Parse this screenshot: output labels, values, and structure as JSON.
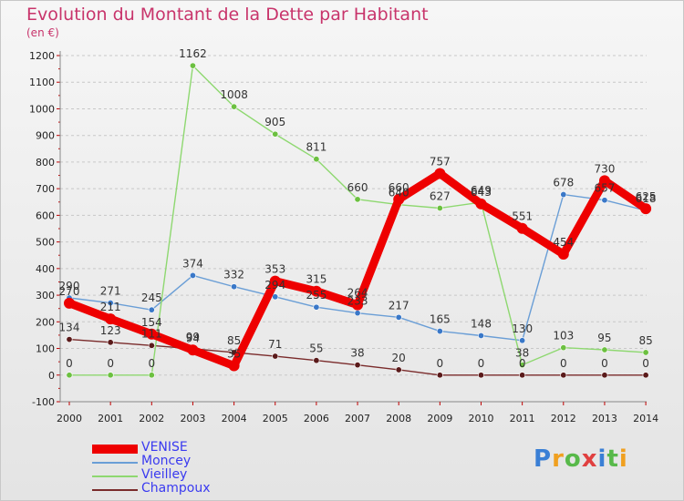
{
  "title": "Evolution du Montant de la Dette par Habitant",
  "subtitle": "(en €)",
  "logo": {
    "text": "Proxiti",
    "letter_colors": [
      "#3a7fd5",
      "#f0a020",
      "#58b94a",
      "#e04040",
      "#3a7fd5",
      "#58b94a",
      "#f0a020"
    ]
  },
  "chart_data": {
    "type": "line",
    "x": [
      "2000",
      "2001",
      "2002",
      "2003",
      "2004",
      "2005",
      "2006",
      "2007",
      "2008",
      "2009",
      "2010",
      "2011",
      "2012",
      "2013",
      "2014"
    ],
    "ylim": [
      -100,
      1200
    ],
    "yticks": [
      -100,
      0,
      100,
      200,
      300,
      400,
      500,
      600,
      700,
      800,
      900,
      1000,
      1100,
      1200
    ],
    "grid": "horizontal dashed",
    "legend_position": "bottom-left",
    "series": [
      {
        "name": "Champoux",
        "color": "#7a2b2b",
        "marker": "#5a1a1a",
        "values": [
          134,
          123,
          111,
          99,
          85,
          71,
          55,
          38,
          20,
          0,
          0,
          0,
          0,
          0,
          0
        ],
        "labels": [
          "134",
          "123",
          "111",
          "99",
          "85",
          "71",
          "55",
          "38",
          "20",
          "0",
          "0",
          "0",
          "0",
          "0",
          "0"
        ]
      },
      {
        "name": "Moncey",
        "color": "#6a9ed6",
        "marker": "#3a78c8",
        "values": [
          290,
          271,
          245,
          374,
          332,
          294,
          255,
          233,
          217,
          165,
          148,
          130,
          678,
          657,
          618
        ],
        "labels": [
          "290",
          "271",
          "245",
          "374",
          "332",
          "294",
          "255",
          "233",
          "217",
          "165",
          "148",
          "130",
          "678",
          "657",
          "618"
        ]
      },
      {
        "name": "Vieilley",
        "color": "#8ed870",
        "marker": "#6cc040",
        "values": [
          0,
          0,
          0,
          1162,
          1008,
          905,
          811,
          660,
          640,
          627,
          649,
          38,
          103,
          95,
          85
        ],
        "labels": [
          "0",
          "0",
          "0",
          "1162",
          "1008",
          "905",
          "811",
          "660",
          "640",
          "627",
          "649",
          "38",
          "103",
          "95",
          "85"
        ]
      },
      {
        "name": "VENISE",
        "color": "#ee0000",
        "marker": "#ee0000",
        "values": [
          270,
          211,
          154,
          94,
          35,
          353,
          315,
          264,
          660,
          757,
          643,
          551,
          454,
          730,
          625
        ],
        "labels": [
          "270",
          "211",
          "154",
          "94",
          "35",
          "353",
          "315",
          "264",
          "660",
          "757",
          "643",
          "551",
          "454",
          "730",
          "625"
        ]
      }
    ],
    "legend": [
      {
        "name": "VENISE",
        "color": "#ee0000",
        "text_color": "#3a3af0"
      },
      {
        "name": "Moncey",
        "color": "#6a9ed6",
        "text_color": "#3a3af0"
      },
      {
        "name": "Vieilley",
        "color": "#8ed870",
        "text_color": "#3a3af0"
      },
      {
        "name": "Champoux",
        "color": "#7a2b2b",
        "text_color": "#3a3af0"
      }
    ]
  }
}
